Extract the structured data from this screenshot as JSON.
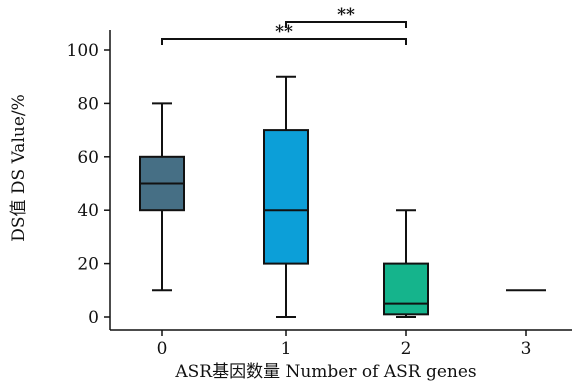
{
  "chart_data": {
    "type": "box",
    "xlabel": "ASR基因数量 Number of ASR genes",
    "ylabel": "DS值 DS Value/%",
    "ylim": [
      0,
      100
    ],
    "yticks": [
      "0",
      "20",
      "40",
      "60",
      "80",
      "100"
    ],
    "categories": [
      "0",
      "1",
      "2",
      "3"
    ],
    "series": [
      {
        "category": "0",
        "min": 10,
        "q1": 40,
        "median": 50,
        "q3": 60,
        "max": 80,
        "color": "#466f85"
      },
      {
        "category": "1",
        "min": 0,
        "q1": 20,
        "median": 40,
        "q3": 70,
        "max": 90,
        "color": "#0c9fd8"
      },
      {
        "category": "2",
        "min": 0,
        "q1": 1,
        "median": 5,
        "q3": 20,
        "max": 40,
        "color": "#15b48c"
      },
      {
        "category": "3",
        "min": 10,
        "q1": 10,
        "median": 10,
        "q3": 10,
        "max": 10,
        "color": "#111111"
      }
    ],
    "significance": [
      {
        "from": "1",
        "to": "2",
        "label": "**",
        "level": 2
      },
      {
        "from": "0",
        "to": "2",
        "label": "**",
        "level": 1
      }
    ],
    "grid": false,
    "legend": "none"
  }
}
